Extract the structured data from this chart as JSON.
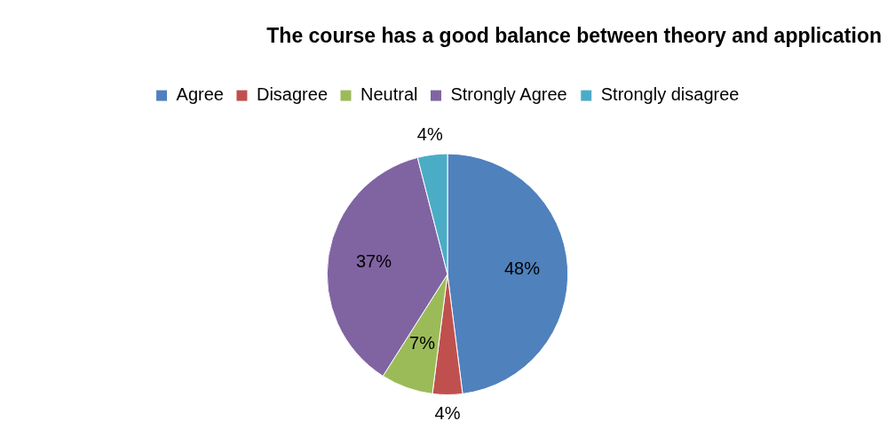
{
  "chart_data": {
    "type": "pie",
    "title": "The course has a good balance between theory and application",
    "categories": [
      "Agree",
      "Disagree",
      "Neutral",
      "Strongly Agree",
      "Strongly disagree"
    ],
    "values": [
      48,
      4,
      7,
      37,
      4
    ],
    "colors": [
      "#4f81bd",
      "#c0504d",
      "#9bbb59",
      "#8064a2",
      "#4bacc6"
    ],
    "value_labels": [
      "48%",
      "4%",
      "7%",
      "37%",
      "4%"
    ],
    "legend": "top"
  }
}
